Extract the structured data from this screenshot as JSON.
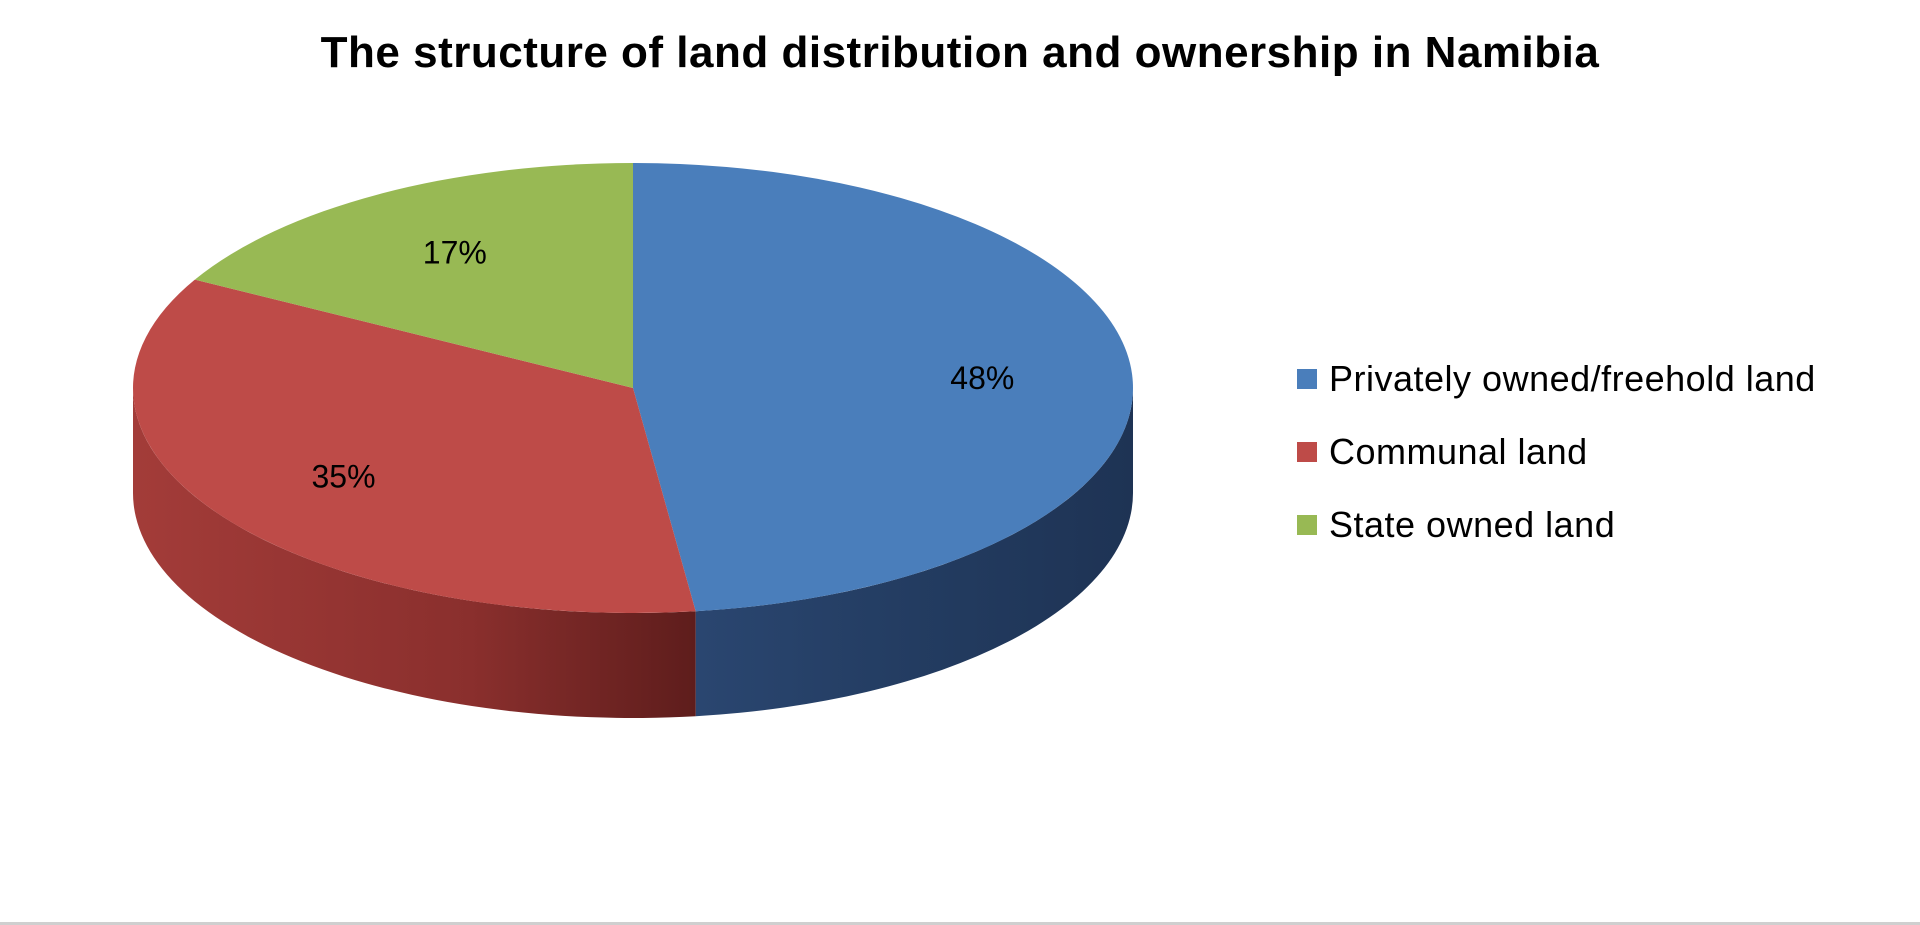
{
  "chart_data": {
    "type": "pie",
    "title": "The structure of land distribution and ownership in Namibia",
    "style": "3d",
    "legend_position": "right",
    "slices": [
      {
        "label": "Privately owned/freehold land",
        "value": 48,
        "display": "48%",
        "color": "#4a7ebb"
      },
      {
        "label": "Communal land",
        "value": 35,
        "display": "35%",
        "color": "#be4b48"
      },
      {
        "label": "State owned land",
        "value": 17,
        "display": "17%",
        "color": "#98b954"
      }
    ]
  }
}
